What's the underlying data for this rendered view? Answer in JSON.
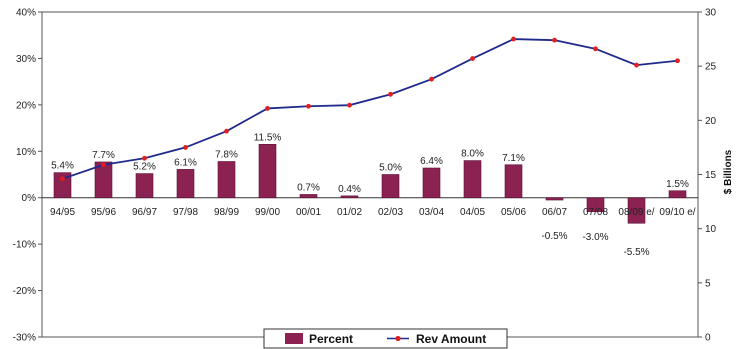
{
  "chart_data": {
    "type": "bar+line",
    "categories": [
      "94/95",
      "95/96",
      "96/97",
      "97/98",
      "98/99",
      "99/00",
      "00/01",
      "01/02",
      "02/03",
      "03/04",
      "04/05",
      "05/06",
      "06/07",
      "07/08",
      "08/09 e/",
      "09/10 e/"
    ],
    "series": [
      {
        "name": "Percent",
        "type": "bar",
        "axis": "left",
        "values": [
          5.4,
          7.7,
          5.2,
          6.1,
          7.8,
          11.5,
          0.7,
          0.4,
          5.0,
          6.4,
          8.0,
          7.1,
          -0.5,
          -3.0,
          -5.5,
          1.5
        ],
        "labels": [
          "5.4%",
          "7.7%",
          "5.2%",
          "6.1%",
          "7.8%",
          "11.5%",
          "0.7%",
          "0.4%",
          "5.0%",
          "6.4%",
          "8.0%",
          "7.1%",
          "-0.5%",
          "-3.0%",
          "-5.5%",
          "1.5%"
        ],
        "color": "#8b2252"
      },
      {
        "name": "Rev Amount",
        "type": "line",
        "axis": "right",
        "values": [
          14.6,
          15.9,
          16.5,
          17.5,
          19.0,
          21.1,
          21.3,
          21.4,
          22.4,
          23.8,
          25.7,
          27.5,
          27.4,
          26.6,
          25.1,
          25.5
        ],
        "color": "#1f2a8c",
        "marker_color": "#e02020"
      }
    ],
    "y_left": {
      "lim": [
        -30,
        40
      ],
      "ticks": [
        -30,
        -20,
        -10,
        0,
        10,
        20,
        30,
        40
      ],
      "tick_labels": [
        "-30%",
        "-20%",
        "-10%",
        "0%",
        "10%",
        "20%",
        "30%",
        "40%"
      ]
    },
    "y_right": {
      "lim": [
        0,
        30
      ],
      "ticks": [
        0,
        5,
        10,
        15,
        20,
        25,
        30
      ],
      "tick_labels": [
        "0",
        "5",
        "10",
        "15",
        "20",
        "25",
        "30"
      ],
      "label": "$ Billions"
    },
    "grid": false,
    "legend": {
      "placement": "bottom",
      "items": [
        "Percent",
        "Rev Amount"
      ]
    }
  }
}
